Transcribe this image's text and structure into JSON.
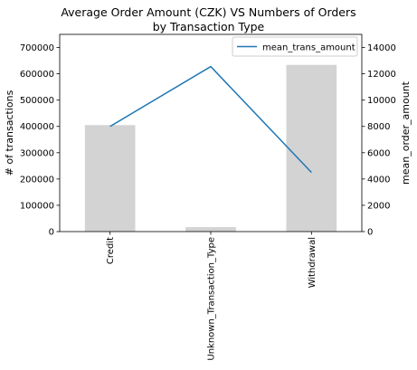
{
  "chart_data": {
    "title_line1": "Average Order Amount (CZK) VS Numbers of Orders",
    "title_line2": "by Transaction Type",
    "type": "bar",
    "categories": [
      "Credit",
      "Unknown_Transaction_Type",
      "Withdrawal"
    ],
    "bar_series": {
      "values": [
        405000,
        17000,
        634000
      ],
      "color": "#d3d3d3",
      "ylabel": "# of transactions",
      "ylim": [
        0,
        750000
      ],
      "ticks": [
        0,
        100000,
        200000,
        300000,
        400000,
        500000,
        600000,
        700000
      ]
    },
    "line_series": {
      "name": "mean_trans_amount",
      "values": [
        8000,
        12550,
        4500
      ],
      "color": "#1f77b4",
      "ylabel": "mean_order_amount",
      "ylim": [
        0,
        15000
      ],
      "ticks": [
        0,
        2000,
        4000,
        6000,
        8000,
        10000,
        12000,
        14000
      ]
    },
    "legend_position": "top-right",
    "grid": false
  }
}
